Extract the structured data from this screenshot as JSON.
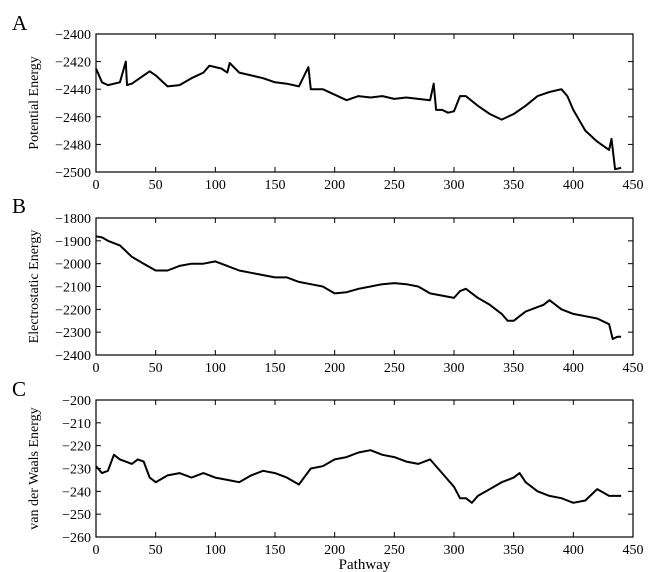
{
  "chart_data": [
    {
      "type": "line",
      "panel": "A",
      "ylabel": "Potential Energy",
      "xlabel": "",
      "xlim": [
        0,
        450
      ],
      "ylim": [
        -2500,
        -2400
      ],
      "xticks": [
        0,
        50,
        100,
        150,
        200,
        250,
        300,
        350,
        400,
        450
      ],
      "yticks": [
        -2400,
        -2420,
        -2440,
        -2460,
        -2480,
        -2500
      ],
      "xtick_labels": [
        "0",
        "50",
        "100",
        "150",
        "200",
        "250",
        "300",
        "350",
        "400",
        "450"
      ],
      "ytick_labels": [
        "−2400",
        "−2420",
        "−2440",
        "−2460",
        "−2480",
        "−2500"
      ],
      "grid": false,
      "x": [
        0,
        5,
        10,
        20,
        25,
        26,
        30,
        40,
        45,
        50,
        60,
        70,
        80,
        90,
        95,
        100,
        105,
        110,
        112,
        120,
        130,
        140,
        150,
        160,
        170,
        178,
        180,
        190,
        200,
        210,
        220,
        230,
        240,
        250,
        260,
        270,
        280,
        283,
        285,
        290,
        295,
        300,
        305,
        310,
        320,
        330,
        340,
        350,
        360,
        370,
        380,
        390,
        395,
        400,
        410,
        420,
        430,
        432,
        435,
        440
      ],
      "y": [
        -2425,
        -2435,
        -2437,
        -2435,
        -2420,
        -2437,
        -2436,
        -2430,
        -2427,
        -2430,
        -2438,
        -2437,
        -2432,
        -2428,
        -2423,
        -2424,
        -2425,
        -2428,
        -2421,
        -2428,
        -2430,
        -2432,
        -2435,
        -2436,
        -2438,
        -2424,
        -2440,
        -2440,
        -2444,
        -2448,
        -2445,
        -2446,
        -2445,
        -2447,
        -2446,
        -2447,
        -2448,
        -2436,
        -2455,
        -2455,
        -2457,
        -2456,
        -2445,
        -2445,
        -2452,
        -2458,
        -2462,
        -2458,
        -2452,
        -2445,
        -2442,
        -2440,
        -2445,
        -2455,
        -2470,
        -2478,
        -2484,
        -2476,
        -2498,
        -2497
      ]
    },
    {
      "type": "line",
      "panel": "B",
      "ylabel": "Electrostatic Energy",
      "xlabel": "",
      "xlim": [
        0,
        450
      ],
      "ylim": [
        -2400,
        -1800
      ],
      "xticks": [
        0,
        50,
        100,
        150,
        200,
        250,
        300,
        350,
        400,
        450
      ],
      "yticks": [
        -1800,
        -1900,
        -2000,
        -2100,
        -2200,
        -2300,
        -2400
      ],
      "xtick_labels": [
        "0",
        "50",
        "100",
        "150",
        "200",
        "250",
        "300",
        "350",
        "400",
        "450"
      ],
      "ytick_labels": [
        "−1800",
        "−1900",
        "−2000",
        "−2100",
        "−2200",
        "−2300",
        "−2400"
      ],
      "grid": false,
      "x": [
        0,
        5,
        10,
        20,
        30,
        40,
        50,
        60,
        70,
        80,
        90,
        100,
        110,
        120,
        130,
        140,
        150,
        160,
        170,
        180,
        190,
        200,
        210,
        220,
        230,
        240,
        250,
        260,
        270,
        280,
        290,
        300,
        305,
        310,
        320,
        330,
        340,
        345,
        350,
        355,
        360,
        370,
        375,
        380,
        390,
        400,
        410,
        420,
        430,
        433,
        437,
        440
      ],
      "y": [
        -1880,
        -1885,
        -1900,
        -1920,
        -1970,
        -2000,
        -2030,
        -2030,
        -2010,
        -2000,
        -2000,
        -1990,
        -2010,
        -2030,
        -2040,
        -2050,
        -2060,
        -2060,
        -2080,
        -2090,
        -2100,
        -2130,
        -2125,
        -2110,
        -2100,
        -2090,
        -2085,
        -2090,
        -2100,
        -2130,
        -2140,
        -2150,
        -2120,
        -2110,
        -2150,
        -2180,
        -2220,
        -2250,
        -2250,
        -2230,
        -2210,
        -2190,
        -2180,
        -2160,
        -2200,
        -2220,
        -2230,
        -2240,
        -2265,
        -2330,
        -2320,
        -2320
      ]
    },
    {
      "type": "line",
      "panel": "C",
      "ylabel": "van der Waals Energy",
      "xlabel": "Pathway",
      "xlim": [
        0,
        450
      ],
      "ylim": [
        -260,
        -200
      ],
      "xticks": [
        0,
        50,
        100,
        150,
        200,
        250,
        300,
        350,
        400,
        450
      ],
      "yticks": [
        -200,
        -210,
        -220,
        -230,
        -240,
        -250,
        -260
      ],
      "xtick_labels": [
        "0",
        "50",
        "100",
        "150",
        "200",
        "250",
        "300",
        "350",
        "400",
        "450"
      ],
      "ytick_labels": [
        "−200",
        "−210",
        "−220",
        "−230",
        "−240",
        "−250",
        "−260"
      ],
      "grid": false,
      "x": [
        0,
        5,
        10,
        15,
        20,
        30,
        35,
        40,
        45,
        50,
        60,
        70,
        80,
        90,
        100,
        110,
        120,
        130,
        140,
        150,
        160,
        170,
        180,
        190,
        200,
        210,
        220,
        230,
        240,
        250,
        260,
        270,
        280,
        290,
        300,
        305,
        310,
        315,
        320,
        330,
        340,
        350,
        355,
        360,
        370,
        380,
        390,
        395,
        400,
        410,
        420,
        430,
        440
      ],
      "y": [
        -229,
        -232,
        -231,
        -224,
        -226,
        -228,
        -226,
        -227,
        -234,
        -236,
        -233,
        -232,
        -234,
        -232,
        -234,
        -235,
        -236,
        -233,
        -231,
        -232,
        -234,
        -237,
        -230,
        -229,
        -226,
        -225,
        -223,
        -222,
        -224,
        -225,
        -227,
        -228,
        -226,
        -232,
        -238,
        -243,
        -243,
        -245,
        -242,
        -239,
        -236,
        -234,
        -232,
        -236,
        -240,
        -242,
        -243,
        -244,
        -245,
        -244,
        -239,
        -242,
        -242
      ]
    }
  ]
}
